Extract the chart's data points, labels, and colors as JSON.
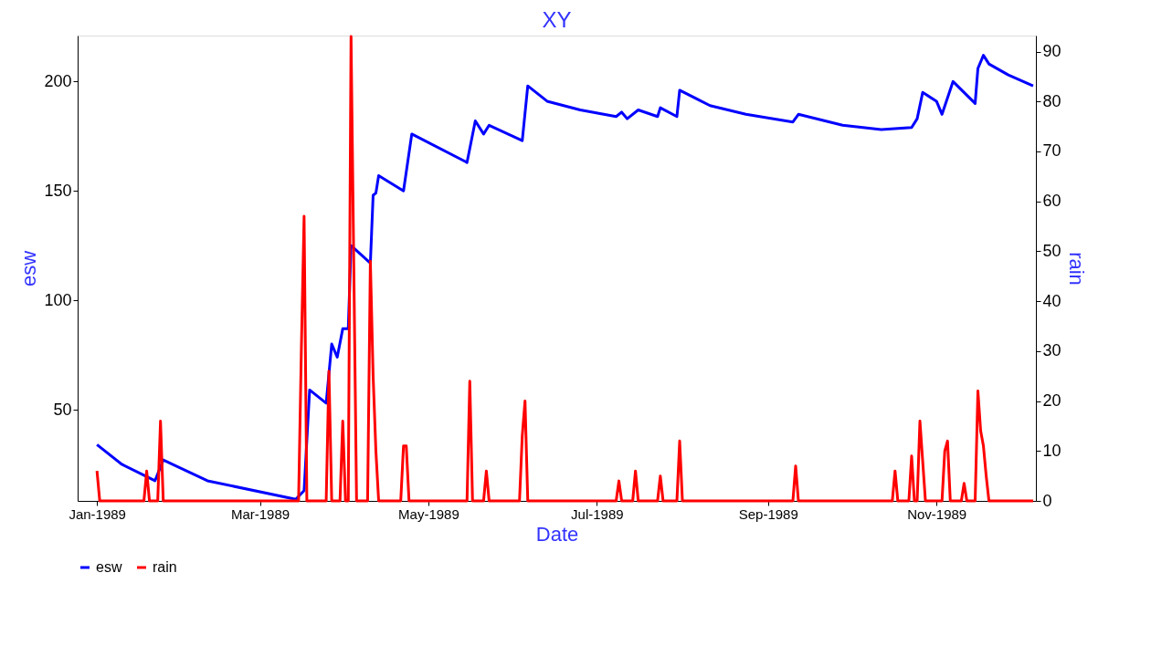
{
  "chart_data": {
    "type": "line",
    "title": "XY",
    "xlabel": "Date",
    "ylabel": "esw",
    "y2label": "rain",
    "xlim": [
      "1988-12-25",
      "1989-12-07"
    ],
    "xticks": [
      {
        "value": "1989-01-01",
        "label": "Jan-1989"
      },
      {
        "value": "1989-03-01",
        "label": "Mar-1989"
      },
      {
        "value": "1989-05-01",
        "label": "May-1989"
      },
      {
        "value": "1989-07-01",
        "label": "Jul-1989"
      },
      {
        "value": "1989-09-01",
        "label": "Sep-1989"
      },
      {
        "value": "1989-11-01",
        "label": "Nov-1989"
      }
    ],
    "ylim": [
      8.3,
      221
    ],
    "yticks": [
      50,
      100,
      150,
      200
    ],
    "y2lim": [
      0,
      93.2
    ],
    "y2ticks": [
      0,
      10,
      20,
      30,
      40,
      50,
      60,
      70,
      80,
      90
    ],
    "grid": false,
    "legend": "bottom",
    "marker": "none",
    "line_style": "solid",
    "series": [
      {
        "name": "esw",
        "color": "#0000ff",
        "x": [
          "1989-01-01",
          "1989-01-10",
          "1989-01-22",
          "1989-01-25",
          "1989-02-10",
          "1989-03-14",
          "1989-03-17",
          "1989-03-19",
          "1989-03-25",
          "1989-03-27",
          "1989-03-29",
          "1989-03-31",
          "1989-04-02",
          "1989-04-03",
          "1989-04-10",
          "1989-04-11",
          "1989-04-12",
          "1989-04-13",
          "1989-04-22",
          "1989-04-25",
          "1989-05-15",
          "1989-05-18",
          "1989-05-21",
          "1989-05-23",
          "1989-06-04",
          "1989-06-06",
          "1989-06-13",
          "1989-06-25",
          "1989-07-08",
          "1989-07-10",
          "1989-07-12",
          "1989-07-16",
          "1989-07-23",
          "1989-07-24",
          "1989-07-30",
          "1989-07-31",
          "1989-08-11",
          "1989-08-24",
          "1989-09-10",
          "1989-09-12",
          "1989-09-28",
          "1989-10-12",
          "1989-10-23",
          "1989-10-25",
          "1989-10-27",
          "1989-11-01",
          "1989-11-03",
          "1989-11-07",
          "1989-11-15",
          "1989-11-16",
          "1989-11-18",
          "1989-11-20",
          "1989-11-27",
          "1989-12-06"
        ],
        "values": [
          34,
          25,
          17.5,
          27,
          17.5,
          9,
          13,
          59,
          53,
          80,
          74,
          87,
          87,
          125,
          117,
          148,
          149,
          157,
          150,
          176,
          163,
          182,
          176,
          180,
          173,
          198,
          191,
          187,
          184,
          186,
          183,
          187,
          184,
          188,
          184,
          196,
          189,
          185,
          181.5,
          185,
          180,
          178,
          179,
          183,
          195,
          191,
          185,
          200,
          190,
          206,
          212,
          208,
          203,
          198
        ]
      },
      {
        "name": "rain",
        "color": "#ff0000",
        "axis": "y2",
        "x": [
          "1989-01-01",
          "1989-01-02",
          "1989-01-18",
          "1989-01-19",
          "1989-01-20",
          "1989-01-23",
          "1989-01-24",
          "1989-01-25",
          "1989-03-15",
          "1989-03-16",
          "1989-03-17",
          "1989-03-18",
          "1989-03-25",
          "1989-03-26",
          "1989-03-27",
          "1989-03-30",
          "1989-03-31",
          "1989-04-01",
          "1989-04-02",
          "1989-04-03",
          "1989-04-04",
          "1989-04-05",
          "1989-04-09",
          "1989-04-10",
          "1989-04-11",
          "1989-04-12",
          "1989-04-13",
          "1989-04-21",
          "1989-04-22",
          "1989-04-23",
          "1989-04-24",
          "1989-05-15",
          "1989-05-16",
          "1989-05-17",
          "1989-05-21",
          "1989-05-22",
          "1989-05-23",
          "1989-06-03",
          "1989-06-04",
          "1989-06-05",
          "1989-06-06",
          "1989-07-08",
          "1989-07-09",
          "1989-07-10",
          "1989-07-14",
          "1989-07-15",
          "1989-07-16",
          "1989-07-23",
          "1989-07-24",
          "1989-07-25",
          "1989-07-30",
          "1989-07-31",
          "1989-08-01",
          "1989-09-10",
          "1989-09-11",
          "1989-09-12",
          "1989-10-16",
          "1989-10-17",
          "1989-10-18",
          "1989-10-22",
          "1989-10-23",
          "1989-10-24",
          "1989-10-25",
          "1989-10-26",
          "1989-10-27",
          "1989-10-28",
          "1989-11-03",
          "1989-11-04",
          "1989-11-05",
          "1989-11-06",
          "1989-11-10",
          "1989-11-11",
          "1989-11-12",
          "1989-11-15",
          "1989-11-16",
          "1989-11-17",
          "1989-11-18",
          "1989-11-19",
          "1989-11-20",
          "1989-12-06"
        ],
        "values": [
          6,
          0,
          0,
          6,
          0,
          0,
          16,
          0,
          0,
          30,
          57,
          0,
          0,
          26,
          0,
          0,
          16,
          0,
          0,
          93,
          47,
          0,
          0,
          48,
          25,
          10,
          0,
          0,
          11,
          11,
          0,
          0,
          24,
          0,
          0,
          6,
          0,
          0,
          13,
          20,
          0,
          0,
          4,
          0,
          0,
          6,
          0,
          0,
          5,
          0,
          0,
          12,
          0,
          0,
          7,
          0,
          0,
          6,
          0,
          0,
          9,
          0,
          0,
          16,
          8,
          0,
          0,
          10,
          12,
          0,
          0,
          3.5,
          0,
          0,
          22,
          14,
          11,
          5,
          0,
          0
        ]
      }
    ]
  }
}
